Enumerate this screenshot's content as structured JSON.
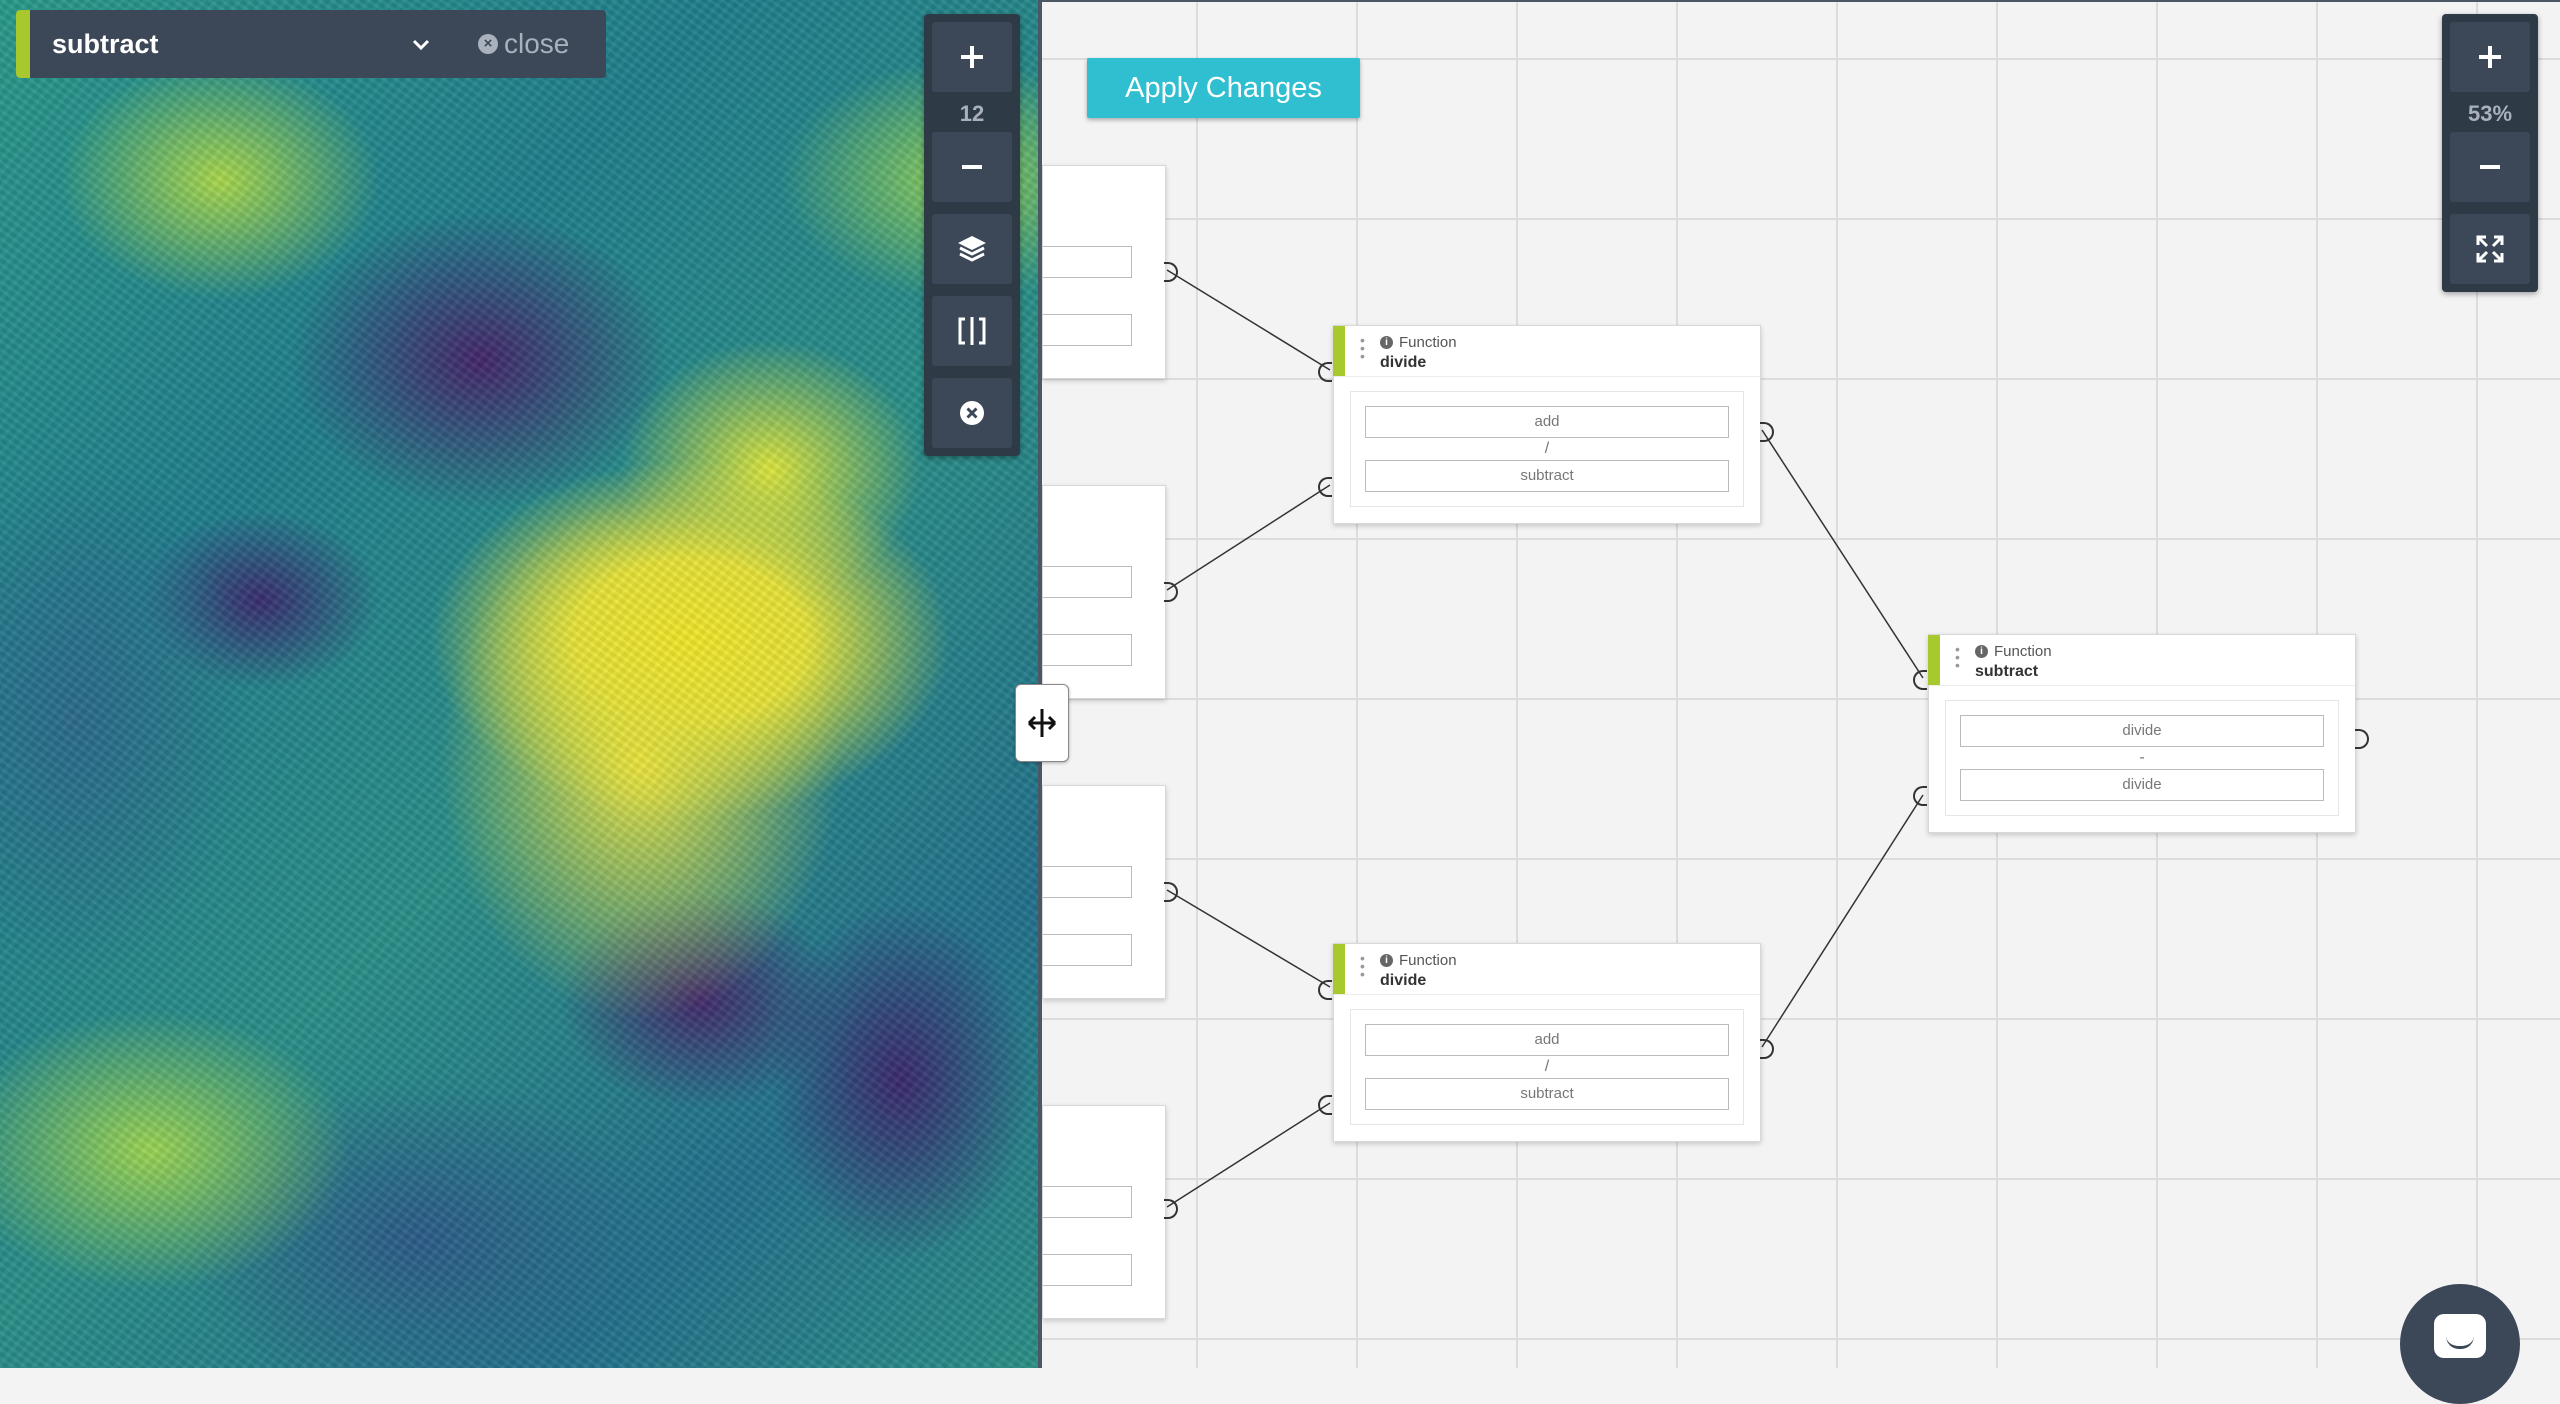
{
  "map": {
    "layer_name": "subtract",
    "close_label": "close",
    "zoom_level": "12",
    "accent_color": "#a8c92e"
  },
  "map_tools": {
    "zoom_in": "plus-icon",
    "zoom_out": "minus-icon",
    "layers": "layers-icon",
    "compare": "split-compare-icon",
    "clear": "close-circle-icon"
  },
  "graph": {
    "apply_label": "Apply Changes",
    "zoom_level": "53%",
    "nodes": [
      {
        "kind": "Function",
        "name": "divide",
        "inputs": [
          "add",
          "subtract"
        ],
        "operator": "/"
      },
      {
        "kind": "Function",
        "name": "divide",
        "inputs": [
          "add",
          "subtract"
        ],
        "operator": "/"
      },
      {
        "kind": "Function",
        "name": "subtract",
        "inputs": [
          "divide",
          "divide"
        ],
        "operator": "-"
      }
    ]
  }
}
